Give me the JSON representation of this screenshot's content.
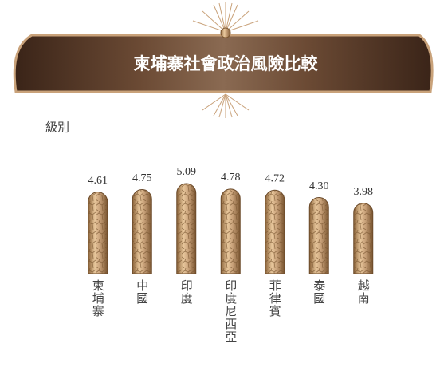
{
  "chart_data": {
    "type": "bar",
    "title": "柬埔寨社會政治風險比較",
    "y_label": "級別",
    "categories": [
      "柬埔寨",
      "中國",
      "印度",
      "印度尼西亞",
      "菲律賓",
      "泰國",
      "越南"
    ],
    "values": [
      4.61,
      4.75,
      5.09,
      4.78,
      4.72,
      4.3,
      3.98
    ],
    "value_labels": [
      "4.61",
      "4.75",
      "5.09",
      "4.78",
      "4.72",
      "4.30",
      "3.98"
    ],
    "color": "#c9a27a"
  }
}
